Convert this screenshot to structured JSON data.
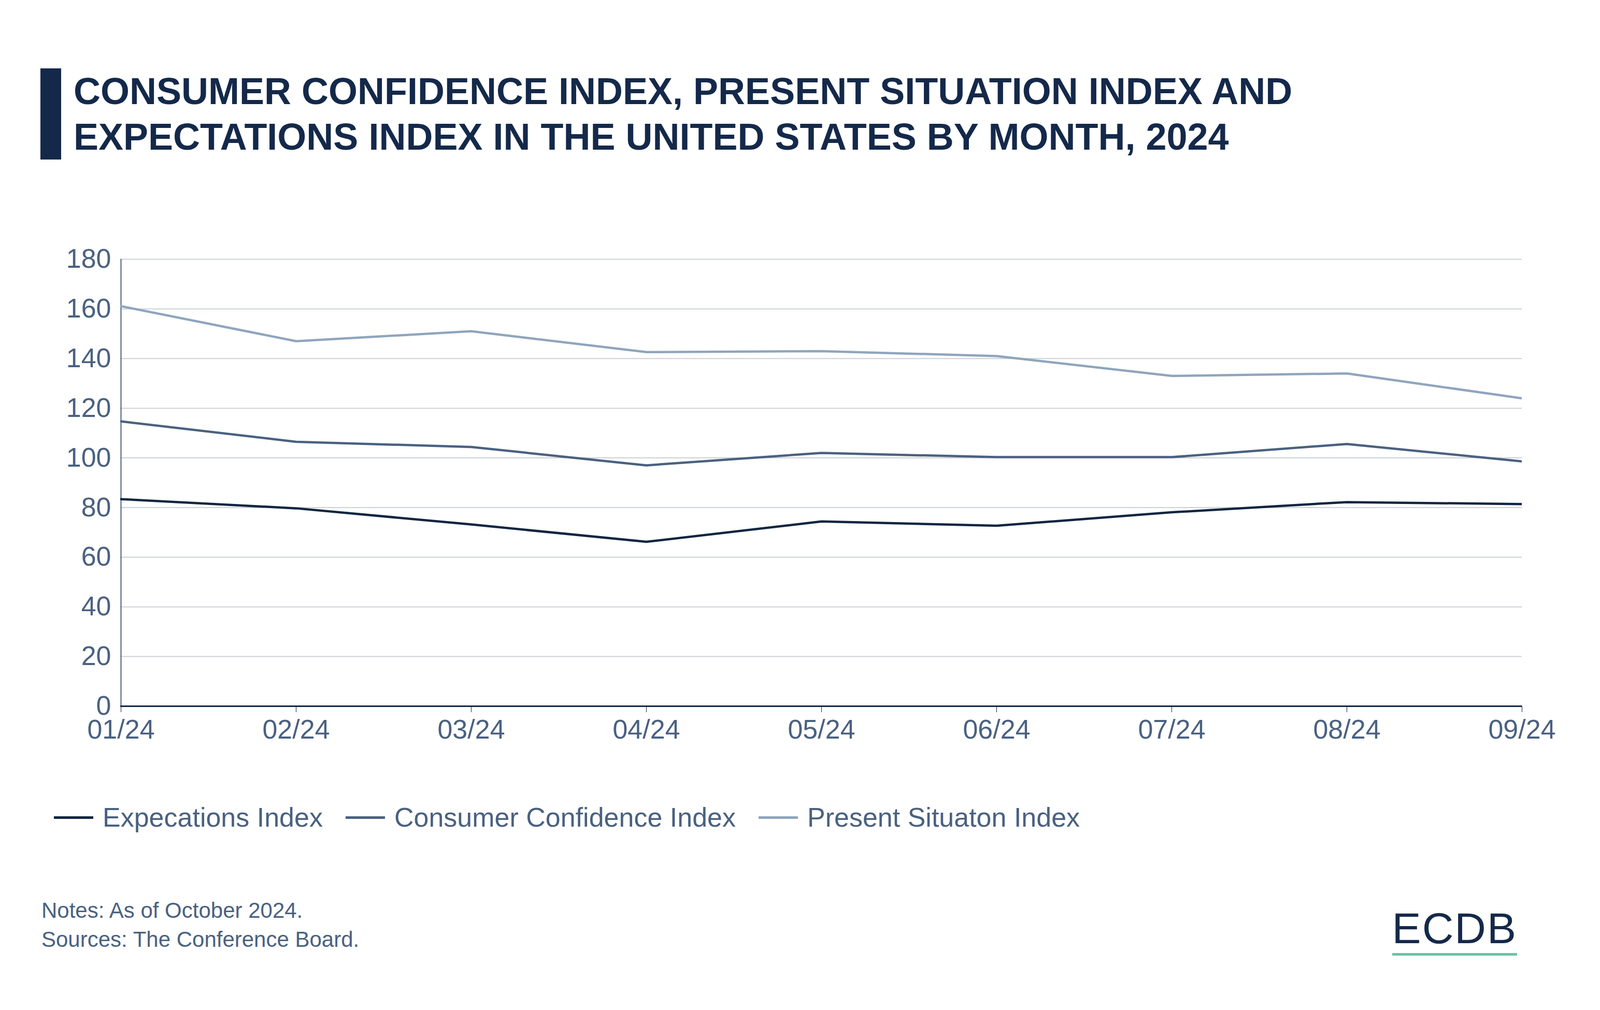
{
  "chart_data": {
    "type": "line",
    "title": "CONSUMER CONFIDENCE INDEX, PRESENT SITUATION INDEX AND EXPECTATIONS INDEX IN THE UNITED STATES BY MONTH, 2024",
    "categories": [
      "01/24",
      "02/24",
      "03/24",
      "04/24",
      "05/24",
      "06/24",
      "07/24",
      "08/24",
      "09/24"
    ],
    "series": [
      {
        "name": "Expecations Index",
        "color": "#0f2540",
        "values": [
          83.4,
          79.7,
          73.2,
          66.2,
          74.4,
          72.7,
          78.1,
          82.2,
          81.4
        ]
      },
      {
        "name": "Consumer Confidence Index",
        "color": "#4a6180",
        "values": [
          114.7,
          106.5,
          104.4,
          97.0,
          102.0,
          100.3,
          100.3,
          105.6,
          98.6
        ]
      },
      {
        "name": "Present Situaton Index",
        "color": "#8fa5bd",
        "values": [
          161.1,
          147.0,
          151.0,
          142.6,
          143.0,
          141.0,
          133.0,
          134.0,
          124.0
        ]
      }
    ],
    "ylim": [
      0,
      180
    ],
    "yticks": [
      0,
      20,
      40,
      60,
      80,
      100,
      120,
      140,
      160,
      180
    ],
    "grid": true,
    "legend": "bottom",
    "notes": [
      "Notes: As of October 2024.",
      "Sources: The Conference Board."
    ],
    "brand": "ECDB"
  }
}
